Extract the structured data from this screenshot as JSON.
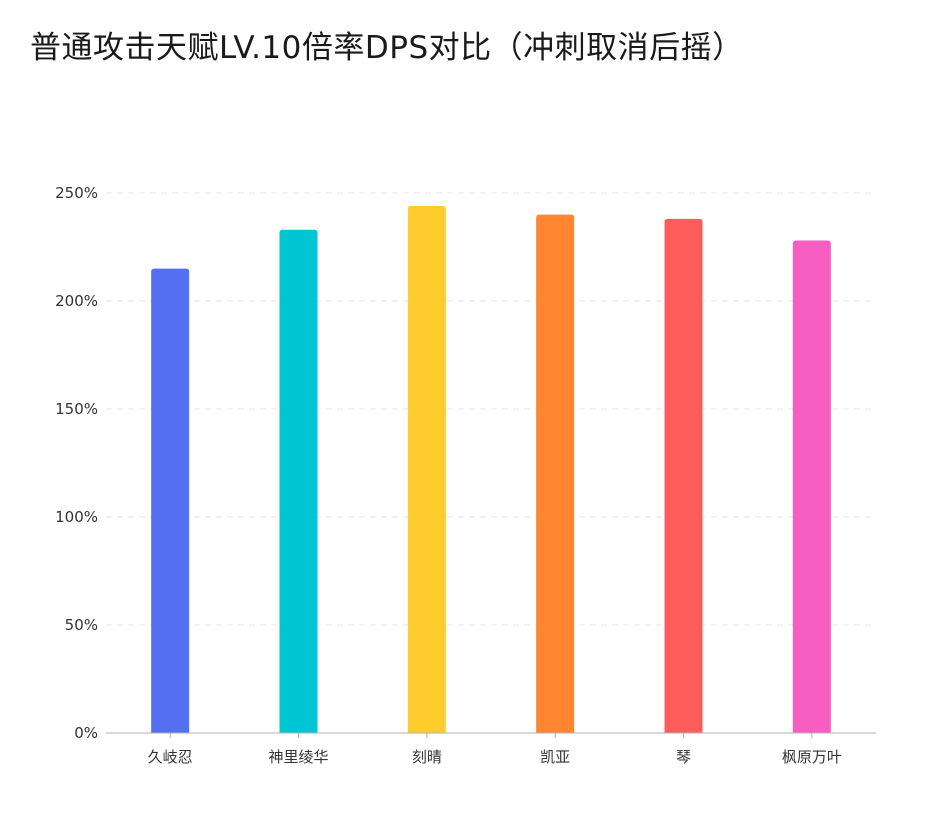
{
  "chart_data": {
    "type": "bar",
    "title": "普通攻击天赋LV.10倍率DPS对比（冲刺取消后摇）",
    "categories": [
      "久岐忍",
      "神里绫华",
      "刻晴",
      "凯亚",
      "琴",
      "枫原万叶"
    ],
    "values": [
      215,
      233,
      244,
      240,
      238,
      228
    ],
    "colors": [
      "#5470f0",
      "#00c5d4",
      "#ffcc2e",
      "#ff8530",
      "#ff5c5c",
      "#f75ec2"
    ],
    "ylim": [
      0,
      250
    ],
    "yticks": [
      0,
      50,
      100,
      150,
      200,
      250
    ],
    "ytick_labels": [
      "0%",
      "50%",
      "100%",
      "150%",
      "200%",
      "250%"
    ],
    "xlabel": "",
    "ylabel": "",
    "grid": true,
    "legend": "none"
  }
}
